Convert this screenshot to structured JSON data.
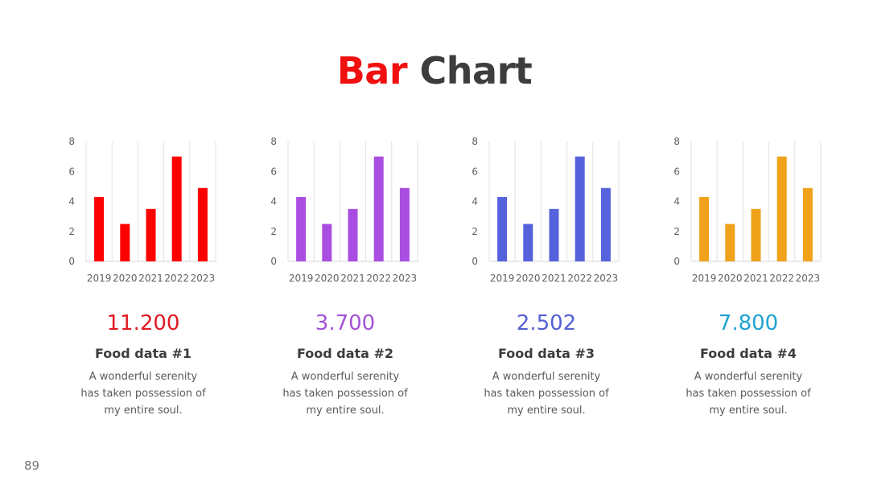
{
  "title": {
    "word1": "Bar",
    "word2": "Chart",
    "color1": "#f01010",
    "color2": "#3d3d3d"
  },
  "page_number": "89",
  "cards": [
    {
      "metric": "11.200",
      "label": "Food data #1",
      "description": "A wonderful serenity has taken possession of my entire soul.",
      "bar_color": "#ff0000",
      "metric_color": "#e11b22"
    },
    {
      "metric": "3.700",
      "label": "Food data #2",
      "description": "A wonderful serenity has taken possession of my entire soul.",
      "bar_color": "#a94ee0",
      "metric_color": "#a452d6"
    },
    {
      "metric": "2.502",
      "label": "Food data #3",
      "description": "A wonderful serenity has taken possession of my entire soul.",
      "bar_color": "#5562dc",
      "metric_color": "#5560d4"
    },
    {
      "metric": "7.800",
      "label": "Food data #4",
      "description": "A wonderful serenity has taken possession of my entire soul.",
      "bar_color": "#f0a21a",
      "metric_color": "#1ea3d0"
    }
  ],
  "chart_data": [
    {
      "type": "bar",
      "categories": [
        "2019",
        "2020",
        "2021",
        "2022",
        "2023"
      ],
      "values": [
        4.3,
        2.5,
        3.5,
        7.0,
        4.9
      ],
      "ylim": [
        0,
        8
      ],
      "yticks": [
        "0",
        "2",
        "4",
        "6",
        "8"
      ],
      "grid": "vertical",
      "color": "#ff0000"
    },
    {
      "type": "bar",
      "categories": [
        "2019",
        "2020",
        "2021",
        "2022",
        "2023"
      ],
      "values": [
        4.3,
        2.5,
        3.5,
        7.0,
        4.9
      ],
      "ylim": [
        0,
        8
      ],
      "yticks": [
        "0",
        "2",
        "4",
        "6",
        "8"
      ],
      "grid": "vertical",
      "color": "#a94ee0"
    },
    {
      "type": "bar",
      "categories": [
        "2019",
        "2020",
        "2021",
        "2022",
        "2023"
      ],
      "values": [
        4.3,
        2.5,
        3.5,
        7.0,
        4.9
      ],
      "ylim": [
        0,
        8
      ],
      "yticks": [
        "0",
        "2",
        "4",
        "6",
        "8"
      ],
      "grid": "vertical",
      "color": "#5562dc"
    },
    {
      "type": "bar",
      "categories": [
        "2019",
        "2020",
        "2021",
        "2022",
        "2023"
      ],
      "values": [
        4.3,
        2.5,
        3.5,
        7.0,
        4.9
      ],
      "ylim": [
        0,
        8
      ],
      "yticks": [
        "0",
        "2",
        "4",
        "6",
        "8"
      ],
      "grid": "vertical",
      "color": "#f0a21a"
    }
  ]
}
